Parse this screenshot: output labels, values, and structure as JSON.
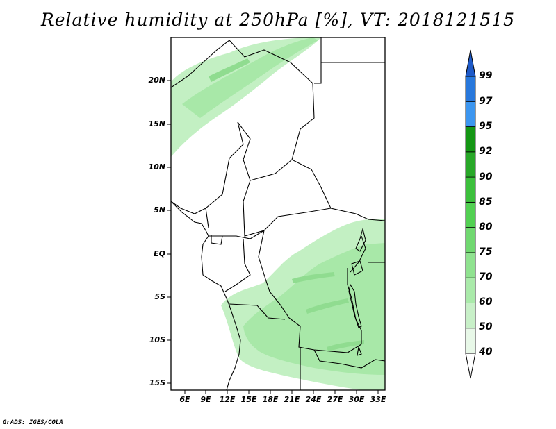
{
  "title": "Relative humidity at 250hPa [%], VT: 2018121515",
  "credit": "GrADS: IGES/COLA",
  "y_axis": {
    "ticks": [
      "20N",
      "15N",
      "10N",
      "5N",
      "EQ",
      "5S",
      "10S",
      "15S"
    ]
  },
  "x_axis": {
    "ticks": [
      "6E",
      "9E",
      "12E",
      "15E",
      "18E",
      "21E",
      "24E",
      "27E",
      "30E",
      "33E"
    ]
  },
  "colorbar": {
    "levels": [
      "40",
      "50",
      "60",
      "70",
      "75",
      "80",
      "85",
      "90",
      "92",
      "95",
      "97",
      "99"
    ],
    "colors": [
      "#e8f8e8",
      "#c8f0c8",
      "#aaeaaa",
      "#8fe28f",
      "#70d870",
      "#52d052",
      "#3cc03c",
      "#28a828",
      "#149614",
      "#3c96f0",
      "#2878dc",
      "#1e5ac8"
    ]
  },
  "colors": {
    "humid_light": "#c3f0c3",
    "humid_mid": "#a8e8a8",
    "humid_streak": "#90dc90",
    "border": "#000000"
  }
}
